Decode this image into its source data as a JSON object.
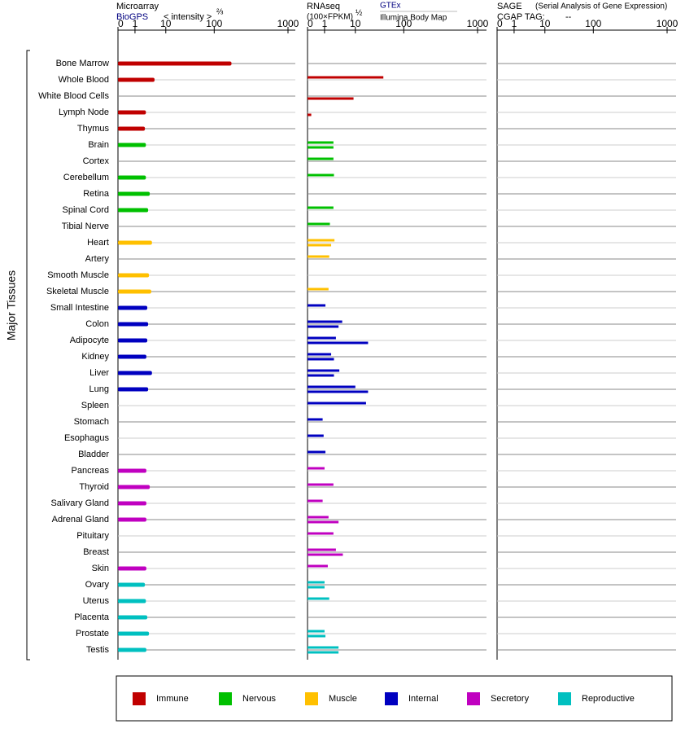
{
  "y_label": "Major Tissues",
  "legend": [
    {
      "name": "Immune",
      "color": "#c00000",
      "tissues": [
        "Bone Marrow",
        "Whole Blood",
        "White Blood Cells",
        "Lymph Node",
        "Thymus"
      ]
    },
    {
      "name": "Nervous",
      "color": "#00c000",
      "tissues": [
        "Brain",
        "Cortex",
        "Cerebellum",
        "Retina",
        "Spinal Cord",
        "Tibial Nerve"
      ]
    },
    {
      "name": "Muscle",
      "color": "#ffc000",
      "tissues": [
        "Heart",
        "Artery",
        "Smooth Muscle",
        "Skeletal Muscle"
      ]
    },
    {
      "name": "Internal",
      "color": "#0000c0",
      "tissues": [
        "Small Intestine",
        "Colon",
        "Adipocyte",
        "Kidney",
        "Liver",
        "Lung",
        "Spleen",
        "Stomach",
        "Esophagus",
        "Bladder"
      ]
    },
    {
      "name": "Secretory",
      "color": "#c000c0",
      "tissues": [
        "Pancreas",
        "Thyroid",
        "Salivary Gland",
        "Adrenal Gland",
        "Pituitary",
        "Breast",
        "Skin"
      ]
    },
    {
      "name": "Reproductive",
      "color": "#00c0c0",
      "tissues": [
        "Ovary",
        "Uterus",
        "Placenta",
        "Prostate",
        "Testis"
      ]
    }
  ],
  "chart_data": [
    {
      "type": "bar",
      "title": "Microarray",
      "source": "BioGPS",
      "x_label": "< intensity >",
      "x_label_power": "⅔",
      "xlim": [
        0,
        1000
      ],
      "xticks": [
        0,
        1,
        10,
        100,
        1000
      ],
      "series": [
        {
          "values": [
            190,
            5,
            null,
            2.7,
            2.5,
            2.7,
            null,
            2.7,
            3.6,
            3.2,
            null,
            4.2,
            null,
            3.4,
            4,
            3,
            3.2,
            3,
            2.8,
            4.2,
            3.2,
            null,
            null,
            null,
            null,
            2.8,
            3.6,
            2.8,
            2.8,
            null,
            null,
            2.8,
            2.5,
            2.7,
            3,
            3.4,
            2.8
          ]
        }
      ]
    },
    {
      "type": "bar",
      "title": "RNAseq",
      "x_label": "(100×FPKM)",
      "x_label_power": "½",
      "xlim": [
        0,
        1000
      ],
      "xticks": [
        0,
        1,
        10,
        100,
        1000
      ],
      "series": [
        {
          "name": "GTEx",
          "values": [
            null,
            42,
            null,
            null,
            null,
            2.3,
            2.3,
            2.4,
            null,
            2.3,
            1.7,
            2.5,
            1.6,
            null,
            1.5,
            1.1,
            4.4,
            2.8,
            1.9,
            3.6,
            10,
            18,
            0.8,
            0.9,
            1.1,
            1.0,
            2.3,
            0.8,
            1.5,
            2.3,
            2.8,
            1.4,
            1.0,
            1.6,
            null,
            1.0,
            3.4
          ]
        },
        {
          "name": "Illumina Body Map",
          "values": [
            null,
            null,
            9,
            0.05,
            null,
            2.3,
            null,
            null,
            null,
            null,
            null,
            1.9,
            null,
            null,
            null,
            null,
            3.4,
            20,
            2.4,
            2.4,
            20,
            null,
            null,
            null,
            null,
            null,
            null,
            null,
            3.4,
            null,
            4.6,
            null,
            1.0,
            null,
            null,
            1.1,
            3.4
          ]
        }
      ]
    },
    {
      "type": "bar",
      "title": "SAGE",
      "subtitle": "(Serial Analysis of Gene Expression)",
      "tag_label": "CGAP TAG:",
      "tag": "--",
      "xlim": [
        0,
        1000
      ],
      "xticks": [
        0,
        1,
        10,
        100,
        1000
      ],
      "series": []
    }
  ]
}
